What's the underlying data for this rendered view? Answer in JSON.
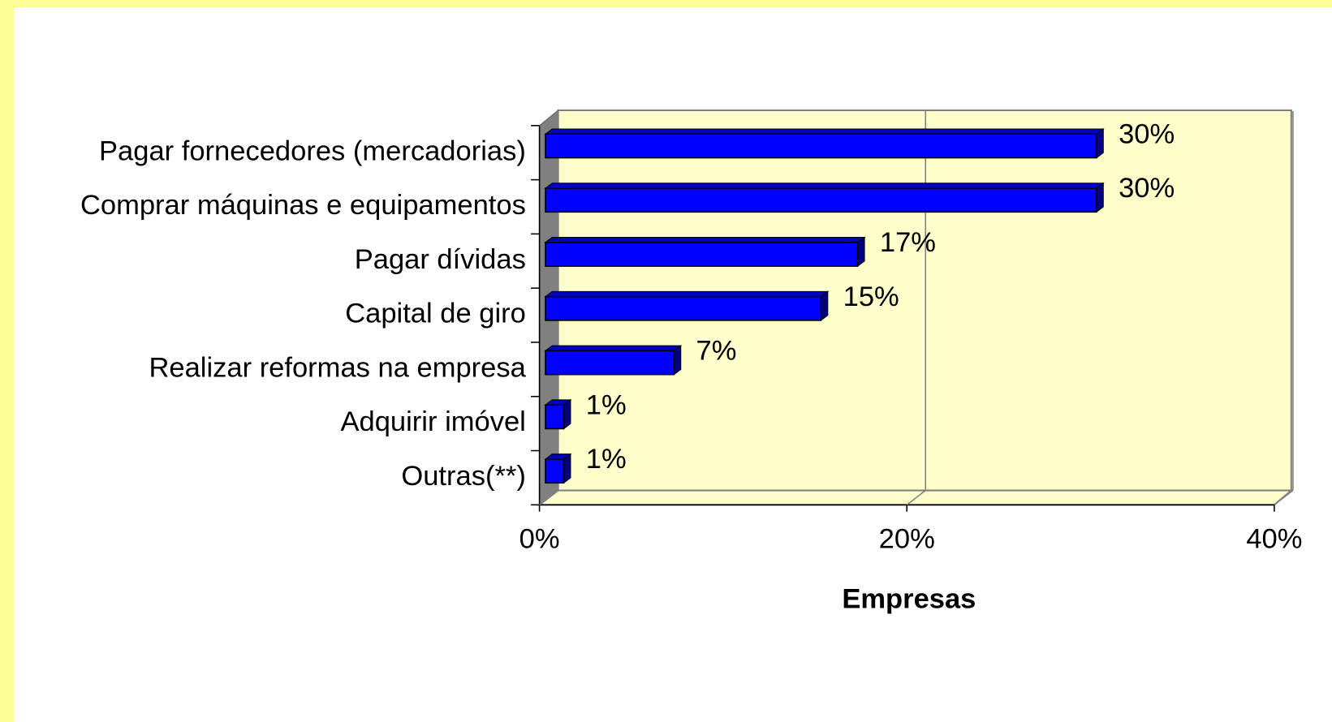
{
  "chart_data": {
    "type": "bar",
    "orientation": "horizontal",
    "categories": [
      "Pagar fornecedores (mercadorias)",
      "Comprar máquinas e equipamentos",
      "Pagar dívidas",
      "Capital de giro",
      "Realizar reformas na empresa",
      "Adquirir imóvel",
      "Outras(**)"
    ],
    "values": [
      30,
      30,
      17,
      15,
      7,
      1,
      1
    ],
    "value_labels": [
      "30%",
      "30%",
      "17%",
      "15%",
      "7%",
      "1%",
      "1%"
    ],
    "color": "#0000ff",
    "xlabel": "Empresas",
    "xlim": [
      0,
      40
    ],
    "xticks": [
      {
        "value": 0,
        "label": "0%"
      },
      {
        "value": 20,
        "label": "20%"
      },
      {
        "value": 40,
        "label": "40%"
      }
    ],
    "grid": true
  }
}
